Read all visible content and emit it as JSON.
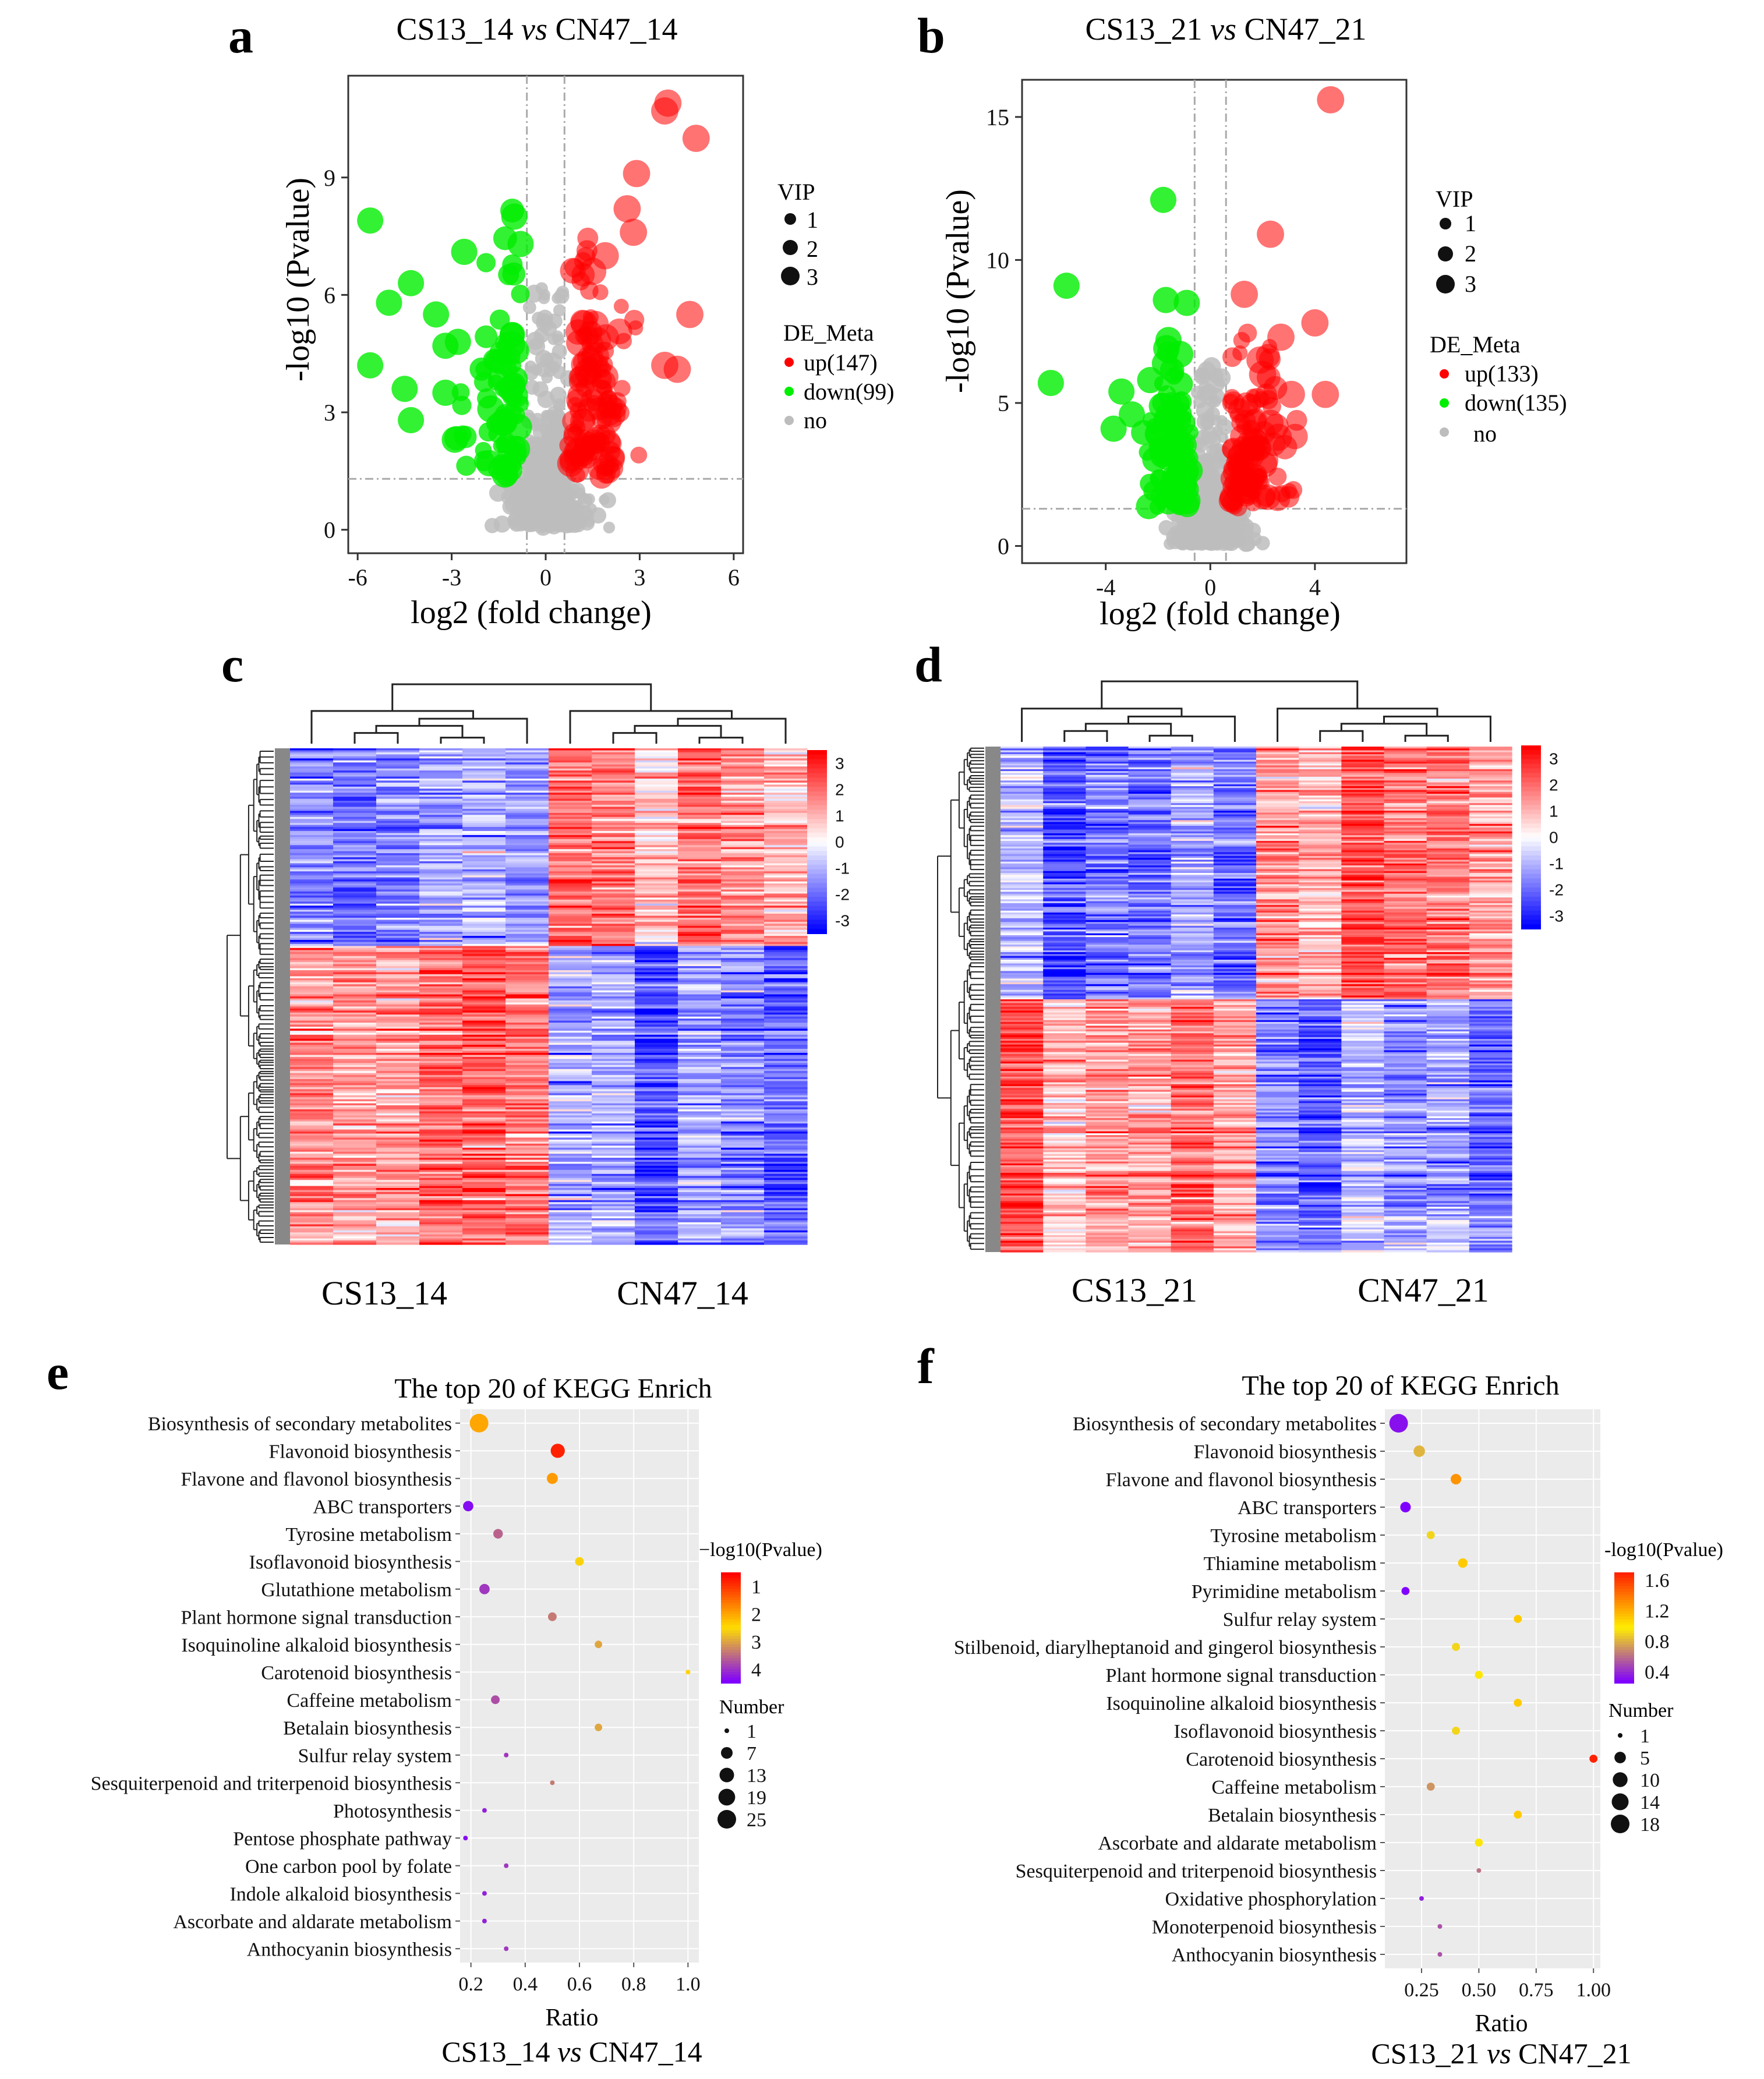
{
  "figure": {
    "panel_letters": [
      "a",
      "b",
      "c",
      "d",
      "e",
      "f"
    ]
  },
  "colors": {
    "up": "#ff0000",
    "down": "#00ee00",
    "no": "#bdbdbd",
    "heat_high": "#ff0000",
    "heat_mid": "#ffffff",
    "heat_low": "#0000ff",
    "kegg_panel_bg": "#ebebeb",
    "kegg_grad_e": [
      "#ff0000",
      "#ffdd00",
      "#7f00ff"
    ],
    "kegg_grad_f": [
      "#ff2200",
      "#ffee00",
      "#7f00ff"
    ]
  },
  "chart_data": [
    {
      "panel": "a",
      "type": "scatter",
      "title_left": "CS13_14",
      "title_vs": "vs",
      "title_right": "CN47_14",
      "xlabel": "log2 (fold change)",
      "ylabel": "-log10 (Pvalue)",
      "xlim": [
        -6.3,
        6.3
      ],
      "ylim": [
        -0.6,
        11.6
      ],
      "xticks": [
        -6,
        -3,
        0,
        3,
        6
      ],
      "yticks": [
        0,
        3,
        6,
        9
      ],
      "fc_thresholds": [
        -0.6,
        0.6
      ],
      "p_threshold": 1.3,
      "vip_legend_title": "VIP",
      "vip_legend": [
        "1",
        "2",
        "3"
      ],
      "de_legend_title": "DE_Meta",
      "de_legend": [
        {
          "key": "up",
          "label": "up(147)"
        },
        {
          "key": "down",
          "label": "down(99)"
        },
        {
          "key": "no",
          "label": "no"
        }
      ],
      "counts": {
        "up": 147,
        "down": 99
      },
      "seed": 11,
      "anchors": {
        "up": [
          [
            3.9,
            10.9
          ],
          [
            3.8,
            10.7
          ],
          [
            4.8,
            10.0
          ],
          [
            2.9,
            9.1
          ],
          [
            2.6,
            8.2
          ],
          [
            2.8,
            7.6
          ],
          [
            4.6,
            5.5
          ],
          [
            3.8,
            4.2
          ],
          [
            4.2,
            4.1
          ],
          [
            1.7,
            3.5
          ],
          [
            1.5,
            6.6
          ],
          [
            1.9,
            7.0
          ]
        ],
        "down": [
          [
            -5.6,
            7.9
          ],
          [
            -5.0,
            5.8
          ],
          [
            -4.3,
            6.3
          ],
          [
            -3.5,
            5.5
          ],
          [
            -2.6,
            7.1
          ],
          [
            -3.2,
            4.7
          ],
          [
            -4.5,
            3.6
          ],
          [
            -5.6,
            4.2
          ],
          [
            -2.8,
            4.8
          ],
          [
            -3.2,
            3.5
          ],
          [
            -1.0,
            8.0
          ],
          [
            -0.8,
            7.3
          ],
          [
            -4.3,
            2.8
          ],
          [
            -2.9,
            2.3
          ],
          [
            -1.8,
            1.7
          ]
        ]
      }
    },
    {
      "panel": "b",
      "type": "scatter",
      "title_left": "CS13_21",
      "title_vs": "vs",
      "title_right": "CN47_21",
      "xlabel": "log2 (fold change)",
      "ylabel": "-log10 (Pvalue)",
      "xlim": [
        -7.2,
        7.5
      ],
      "ylim": [
        -0.6,
        16.3
      ],
      "xticks": [
        -4,
        0,
        4
      ],
      "yticks": [
        0,
        5,
        10,
        15
      ],
      "fc_thresholds": [
        -0.6,
        0.6
      ],
      "p_threshold": 1.3,
      "vip_legend_title": "VIP",
      "vip_legend": [
        "1",
        "2",
        "3"
      ],
      "de_legend_title": "DE_Meta",
      "de_legend": [
        {
          "key": "up",
          "label": "up(133)"
        },
        {
          "key": "down",
          "label": "down(135)"
        },
        {
          "key": "no",
          "label": "no"
        }
      ],
      "counts": {
        "up": 133,
        "down": 135
      },
      "seed": 29,
      "anchors": {
        "up": [
          [
            4.6,
            15.6
          ],
          [
            2.3,
            10.9
          ],
          [
            1.3,
            8.8
          ],
          [
            4.0,
            7.8
          ],
          [
            2.7,
            7.3
          ],
          [
            3.1,
            5.3
          ],
          [
            4.4,
            5.3
          ],
          [
            1.9,
            6.5
          ],
          [
            2.6,
            3.8
          ],
          [
            2.0,
            6.0
          ]
        ],
        "down": [
          [
            -1.8,
            12.1
          ],
          [
            -5.5,
            9.1
          ],
          [
            -1.7,
            8.6
          ],
          [
            -0.9,
            8.5
          ],
          [
            -6.1,
            5.7
          ],
          [
            -3.4,
            5.4
          ],
          [
            -3.7,
            4.1
          ],
          [
            -2.3,
            5.8
          ],
          [
            -1.6,
            7.2
          ],
          [
            -3.0,
            4.6
          ]
        ]
      }
    },
    {
      "panel": "c",
      "type": "heatmap",
      "group_labels": [
        "CS13_14",
        "CN47_14"
      ],
      "columns": 12,
      "groups": [
        6,
        6
      ],
      "rows": 246,
      "split_row": 0.4,
      "scale": [
        -3,
        3
      ],
      "colorbar_ticks": [
        "3",
        "2",
        "1",
        "0",
        "-1",
        "-2",
        "-3"
      ],
      "seed": 101
    },
    {
      "panel": "d",
      "type": "heatmap",
      "group_labels": [
        "CS13_21",
        "CN47_21"
      ],
      "columns": 12,
      "groups": [
        6,
        6
      ],
      "rows": 268,
      "split_row": 0.5,
      "scale": [
        -3,
        3
      ],
      "colorbar_ticks": [
        "3",
        "2",
        "1",
        "0",
        "-1",
        "-2",
        "-3"
      ],
      "seed": 202
    },
    {
      "panel": "e",
      "type": "scatter",
      "title": "The top 20 of KEGG Enrich",
      "xlabel": "Ratio",
      "subtitle_left": "CS13_14",
      "subtitle_vs": "vs",
      "subtitle_right": "CN47_14",
      "xlim": [
        0.16,
        1.04
      ],
      "xticks": [
        0.2,
        0.4,
        0.6,
        0.8,
        1.0
      ],
      "xtick_labels": [
        "0.2",
        "0.4",
        "0.6",
        "0.8",
        "1.0"
      ],
      "color_legend_title": "−log10(Pvalue)",
      "color_range": [
        4.5,
        0.5
      ],
      "color_ticks": [
        1,
        2,
        3,
        4
      ],
      "size_legend_title": "Number",
      "size_range": [
        1,
        25
      ],
      "size_ticks": [
        1,
        7,
        13,
        19,
        25
      ],
      "pathways": [
        {
          "name": "Biosynthesis of secondary metabolites",
          "ratio": 0.23,
          "number": 25,
          "p": 2.0
        },
        {
          "name": "Flavonoid biosynthesis",
          "ratio": 0.52,
          "number": 12,
          "p": 0.8
        },
        {
          "name": "Flavone and flavonol biosynthesis",
          "ratio": 0.5,
          "number": 6,
          "p": 1.9
        },
        {
          "name": "ABC transporters",
          "ratio": 0.19,
          "number": 5,
          "p": 4.4
        },
        {
          "name": "Tyrosine metabolism",
          "ratio": 0.3,
          "number": 4,
          "p": 3.6
        },
        {
          "name": "Isoflavonoid biosynthesis",
          "ratio": 0.6,
          "number": 3,
          "p": 2.6
        },
        {
          "name": "Glutathione metabolism",
          "ratio": 0.25,
          "number": 5,
          "p": 4.0
        },
        {
          "name": "Plant hormone signal transduction",
          "ratio": 0.5,
          "number": 3,
          "p": 3.4
        },
        {
          "name": "Isoquinoline alkaloid biosynthesis",
          "ratio": 0.67,
          "number": 2,
          "p": 3.0
        },
        {
          "name": "Carotenoid biosynthesis",
          "ratio": 1.0,
          "number": 1,
          "p": 2.4
        },
        {
          "name": "Caffeine metabolism",
          "ratio": 0.29,
          "number": 3,
          "p": 3.8
        },
        {
          "name": "Betalain biosynthesis",
          "ratio": 0.67,
          "number": 2,
          "p": 3.0
        },
        {
          "name": "Sulfur relay system",
          "ratio": 0.33,
          "number": 1,
          "p": 4.0
        },
        {
          "name": "Sesquiterpenoid and triterpenoid biosynthesis",
          "ratio": 0.5,
          "number": 1,
          "p": 3.4
        },
        {
          "name": "Photosynthesis",
          "ratio": 0.25,
          "number": 1,
          "p": 4.2
        },
        {
          "name": "Pentose phosphate pathway",
          "ratio": 0.18,
          "number": 1,
          "p": 4.4
        },
        {
          "name": "One carbon pool by folate",
          "ratio": 0.33,
          "number": 1,
          "p": 4.0
        },
        {
          "name": "Indole alkaloid biosynthesis",
          "ratio": 0.25,
          "number": 1,
          "p": 4.2
        },
        {
          "name": "Ascorbate and aldarate metabolism",
          "ratio": 0.25,
          "number": 1,
          "p": 4.2
        },
        {
          "name": "Anthocyanin biosynthesis",
          "ratio": 0.33,
          "number": 1,
          "p": 4.0
        }
      ]
    },
    {
      "panel": "f",
      "type": "scatter",
      "title": "The top 20 of KEGG Enrich",
      "xlabel": "Ratio",
      "subtitle_left": "CS13_21",
      "subtitle_vs": "vs",
      "subtitle_right": "CN47_21",
      "xlim": [
        0.09,
        1.03
      ],
      "xticks": [
        0.25,
        0.5,
        0.75,
        1.0
      ],
      "xtick_labels": [
        "0.25",
        "0.50",
        "0.75",
        "1.00"
      ],
      "color_legend_title": "-log10(Pvalue)",
      "color_range": [
        0.25,
        1.7
      ],
      "color_ticks": [
        0.4,
        0.8,
        1.2,
        1.6
      ],
      "color_tick_labels": [
        "0.4",
        "0.8",
        "1.2",
        "1.6"
      ],
      "size_legend_title": "Number",
      "size_range": [
        1,
        18
      ],
      "size_ticks": [
        1,
        5,
        10,
        14,
        18
      ],
      "pathways": [
        {
          "name": "Biosynthesis of secondary metabolites",
          "ratio": 0.15,
          "number": 18,
          "p": 0.3
        },
        {
          "name": "Flavonoid biosynthesis",
          "ratio": 0.24,
          "number": 5,
          "p": 0.8
        },
        {
          "name": "Flavone and flavonol biosynthesis",
          "ratio": 0.4,
          "number": 4,
          "p": 1.3
        },
        {
          "name": "ABC transporters",
          "ratio": 0.18,
          "number": 4,
          "p": 0.25
        },
        {
          "name": "Tyrosine metabolism",
          "ratio": 0.29,
          "number": 2,
          "p": 0.9
        },
        {
          "name": "Thiamine metabolism",
          "ratio": 0.43,
          "number": 3,
          "p": 1.1
        },
        {
          "name": "Pyrimidine metabolism",
          "ratio": 0.18,
          "number": 2,
          "p": 0.25
        },
        {
          "name": "Sulfur relay system",
          "ratio": 0.67,
          "number": 2,
          "p": 1.1
        },
        {
          "name": "Stilbenoid, diarylheptanoid and gingerol biosynthesis",
          "ratio": 0.4,
          "number": 2,
          "p": 0.9
        },
        {
          "name": "Plant hormone signal transduction",
          "ratio": 0.5,
          "number": 2,
          "p": 1.0
        },
        {
          "name": "Isoquinoline alkaloid biosynthesis",
          "ratio": 0.67,
          "number": 2,
          "p": 1.1
        },
        {
          "name": "Isoflavonoid biosynthesis",
          "ratio": 0.4,
          "number": 2,
          "p": 0.9
        },
        {
          "name": "Carotenoid biosynthesis",
          "ratio": 1.0,
          "number": 2,
          "p": 1.7
        },
        {
          "name": "Caffeine metabolism",
          "ratio": 0.29,
          "number": 2,
          "p": 0.7
        },
        {
          "name": "Betalain biosynthesis",
          "ratio": 0.67,
          "number": 2,
          "p": 1.1
        },
        {
          "name": "Ascorbate and aldarate metabolism",
          "ratio": 0.5,
          "number": 2,
          "p": 0.95
        },
        {
          "name": "Sesquiterpenoid and triterpenoid biosynthesis",
          "ratio": 0.5,
          "number": 1,
          "p": 0.6
        },
        {
          "name": "Oxidative phosphorylation",
          "ratio": 0.25,
          "number": 1,
          "p": 0.35
        },
        {
          "name": "Monoterpenoid biosynthesis",
          "ratio": 0.33,
          "number": 1,
          "p": 0.5
        },
        {
          "name": "Anthocyanin biosynthesis",
          "ratio": 0.33,
          "number": 1,
          "p": 0.5
        }
      ]
    }
  ]
}
